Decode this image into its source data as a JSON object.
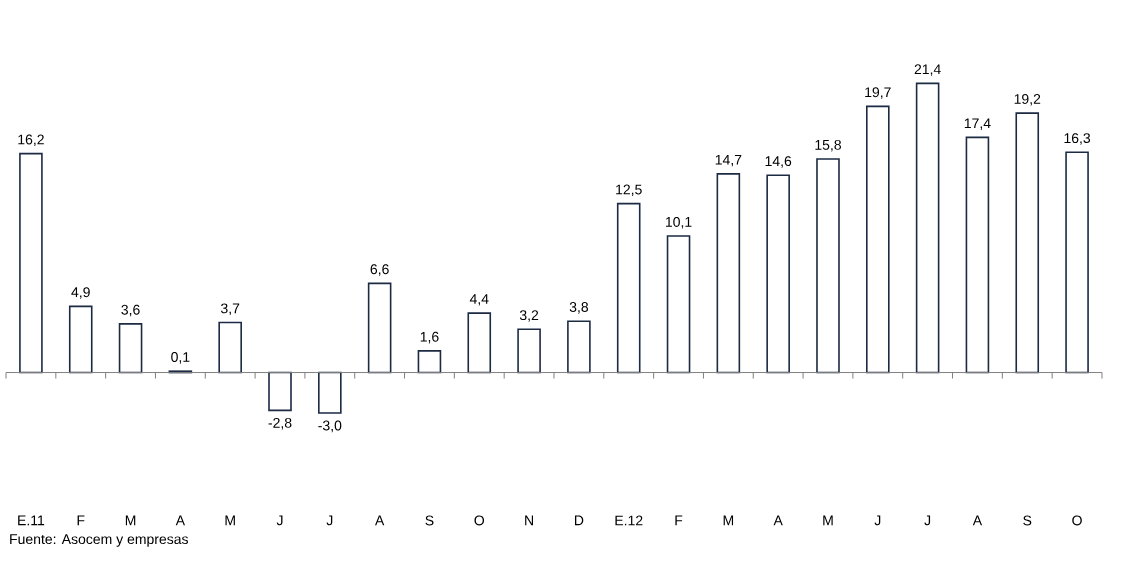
{
  "chart_data": {
    "type": "bar",
    "categories": [
      "E.11",
      "F",
      "M",
      "A",
      "M",
      "J",
      "J",
      "A",
      "S",
      "O",
      "N",
      "D",
      "E.12",
      "F",
      "M",
      "A",
      "M",
      "J",
      "J",
      "A",
      "S",
      "O"
    ],
    "values": [
      16.2,
      4.9,
      3.6,
      0.1,
      3.7,
      -2.8,
      -3.0,
      6.6,
      1.6,
      4.4,
      3.2,
      3.8,
      12.5,
      10.1,
      14.7,
      14.6,
      15.8,
      19.7,
      21.4,
      17.4,
      19.2,
      16.3
    ],
    "value_labels": [
      "16,2",
      "4,9",
      "3,6",
      "0,1",
      "3,7",
      "-2,8",
      "-3,0",
      "6,6",
      "1,6",
      "4,4",
      "3,2",
      "3,8",
      "12,5",
      "10,1",
      "14,7",
      "14,6",
      "15,8",
      "19,7",
      "21,4",
      "17,4",
      "19,2",
      "16,3"
    ],
    "color": "#1c2a44",
    "annotations": [
      "Fuente: Asocem y empresas"
    ]
  }
}
